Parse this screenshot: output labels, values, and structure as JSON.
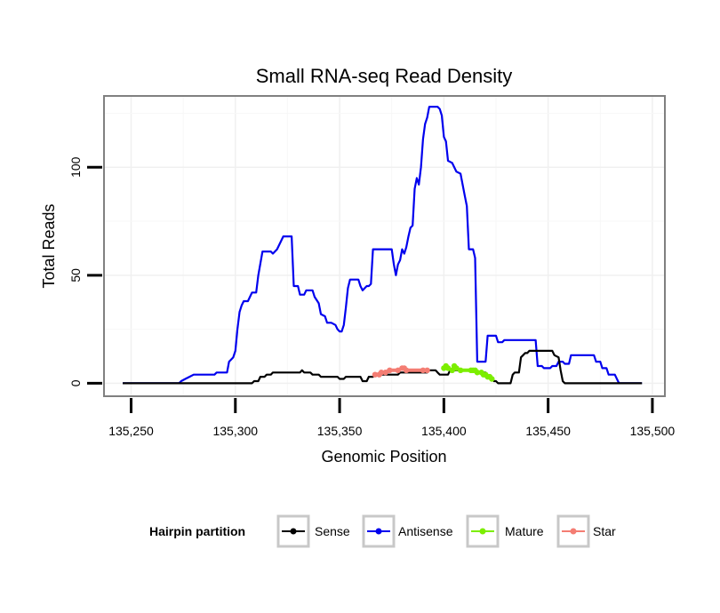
{
  "chart_data": {
    "type": "line",
    "title": "Small RNA-seq Read Density",
    "xlabel": "Genomic Position",
    "ylabel": "Total Reads",
    "xlim": [
      135237,
      135506
    ],
    "ylim": [
      -6,
      133
    ],
    "x_ticks": [
      135250,
      135300,
      135350,
      135400,
      135450,
      135500
    ],
    "x_tick_labels": [
      "135,250",
      "135,300",
      "135,350",
      "135,400",
      "135,450",
      "135,500"
    ],
    "y_ticks": [
      0,
      50,
      100
    ],
    "y_tick_labels": [
      "0",
      "50",
      "100"
    ],
    "grid": true,
    "legend": {
      "title": "Hairpin partition",
      "position": "bottom",
      "entries": [
        {
          "name": "Sense",
          "color": "#000000"
        },
        {
          "name": "Antisense",
          "color": "#0000ee"
        },
        {
          "name": "Mature",
          "color": "#7cee00"
        },
        {
          "name": "Star",
          "color": "#f47d73"
        }
      ]
    },
    "series": [
      {
        "name": "Antisense",
        "color": "#0000ee",
        "points": [
          [
            135246,
            0
          ],
          [
            135273,
            0
          ],
          [
            135274,
            1
          ],
          [
            135276,
            2
          ],
          [
            135278,
            3
          ],
          [
            135280,
            4
          ],
          [
            135290,
            4
          ],
          [
            135291,
            5
          ],
          [
            135296,
            5
          ],
          [
            135297,
            10
          ],
          [
            135299,
            12
          ],
          [
            135300,
            15
          ],
          [
            135301,
            25
          ],
          [
            135302,
            33
          ],
          [
            135303,
            36
          ],
          [
            135304,
            38
          ],
          [
            135306,
            38
          ],
          [
            135307,
            40
          ],
          [
            135308,
            42
          ],
          [
            135310,
            42
          ],
          [
            135311,
            50
          ],
          [
            135313,
            61
          ],
          [
            135317,
            61
          ],
          [
            135318,
            60
          ],
          [
            135320,
            62
          ],
          [
            135322,
            66
          ],
          [
            135323,
            68
          ],
          [
            135327,
            68
          ],
          [
            135328,
            45
          ],
          [
            135330,
            45
          ],
          [
            135331,
            41
          ],
          [
            135333,
            41
          ],
          [
            135334,
            43
          ],
          [
            135337,
            43
          ],
          [
            135338,
            40
          ],
          [
            135340,
            37
          ],
          [
            135341,
            32
          ],
          [
            135343,
            31
          ],
          [
            135344,
            28
          ],
          [
            135346,
            28
          ],
          [
            135348,
            27
          ],
          [
            135349,
            25
          ],
          [
            135350,
            24
          ],
          [
            135351,
            24
          ],
          [
            135352,
            27
          ],
          [
            135353,
            35
          ],
          [
            135354,
            44
          ],
          [
            135355,
            48
          ],
          [
            135359,
            48
          ],
          [
            135360,
            45
          ],
          [
            135361,
            43
          ],
          [
            135363,
            45
          ],
          [
            135364,
            45
          ],
          [
            135365,
            46
          ],
          [
            135366,
            62
          ],
          [
            135375,
            62
          ],
          [
            135376,
            55
          ],
          [
            135377,
            50
          ],
          [
            135378,
            55
          ],
          [
            135379,
            57
          ],
          [
            135380,
            62
          ],
          [
            135381,
            60
          ],
          [
            135382,
            63
          ],
          [
            135383,
            68
          ],
          [
            135384,
            72
          ],
          [
            135385,
            73
          ],
          [
            135386,
            90
          ],
          [
            135387,
            95
          ],
          [
            135388,
            92
          ],
          [
            135389,
            100
          ],
          [
            135390,
            113
          ],
          [
            135391,
            120
          ],
          [
            135392,
            123
          ],
          [
            135393,
            128
          ],
          [
            135397,
            128
          ],
          [
            135398,
            127
          ],
          [
            135399,
            124
          ],
          [
            135400,
            114
          ],
          [
            135401,
            112
          ],
          [
            135402,
            103
          ],
          [
            135404,
            102
          ],
          [
            135406,
            98
          ],
          [
            135408,
            97
          ],
          [
            135410,
            87
          ],
          [
            135411,
            82
          ],
          [
            135412,
            62
          ],
          [
            135414,
            62
          ],
          [
            135415,
            58
          ],
          [
            135416,
            10
          ],
          [
            135420,
            10
          ],
          [
            135421,
            22
          ],
          [
            135425,
            22
          ],
          [
            135426,
            19
          ],
          [
            135428,
            19
          ],
          [
            135429,
            20
          ],
          [
            135444,
            20
          ],
          [
            135445,
            8
          ],
          [
            135447,
            8
          ],
          [
            135448,
            7
          ],
          [
            135451,
            7
          ],
          [
            135452,
            8
          ],
          [
            135454,
            8
          ],
          [
            135455,
            10
          ],
          [
            135457,
            10
          ],
          [
            135458,
            9
          ],
          [
            135460,
            9
          ],
          [
            135461,
            13
          ],
          [
            135472,
            13
          ],
          [
            135473,
            10
          ],
          [
            135475,
            10
          ],
          [
            135476,
            7
          ],
          [
            135478,
            7
          ],
          [
            135479,
            4
          ],
          [
            135482,
            4
          ],
          [
            135483,
            2
          ],
          [
            135484,
            0
          ],
          [
            135495,
            0
          ]
        ]
      },
      {
        "name": "Sense",
        "color": "#000000",
        "points": [
          [
            135246,
            0
          ],
          [
            135308,
            0
          ],
          [
            135309,
            1
          ],
          [
            135311,
            1
          ],
          [
            135312,
            3
          ],
          [
            135314,
            3
          ],
          [
            135315,
            4
          ],
          [
            135317,
            4
          ],
          [
            135318,
            5
          ],
          [
            135331,
            5
          ],
          [
            135332,
            6
          ],
          [
            135333,
            5
          ],
          [
            135336,
            5
          ],
          [
            135337,
            4
          ],
          [
            135340,
            4
          ],
          [
            135341,
            3
          ],
          [
            135349,
            3
          ],
          [
            135350,
            2
          ],
          [
            135352,
            2
          ],
          [
            135353,
            3
          ],
          [
            135360,
            3
          ],
          [
            135361,
            1
          ],
          [
            135363,
            1
          ],
          [
            135364,
            3
          ],
          [
            135366,
            3
          ],
          [
            135367,
            4
          ],
          [
            135378,
            4
          ],
          [
            135379,
            5
          ],
          [
            135390,
            5
          ],
          [
            135392,
            5
          ],
          [
            135393,
            6
          ],
          [
            135396,
            6
          ],
          [
            135397,
            5
          ],
          [
            135398,
            4
          ],
          [
            135402,
            4
          ],
          [
            135403,
            6
          ],
          [
            135415,
            6
          ],
          [
            135416,
            5
          ],
          [
            135420,
            5
          ],
          [
            135421,
            3
          ],
          [
            135423,
            3
          ],
          [
            135424,
            1
          ],
          [
            135425,
            1
          ],
          [
            135426,
            0
          ],
          [
            135432,
            0
          ],
          [
            135433,
            4
          ],
          [
            135434,
            5
          ],
          [
            135436,
            5
          ],
          [
            135437,
            12
          ],
          [
            135438,
            13
          ],
          [
            135439,
            14
          ],
          [
            135440,
            14
          ],
          [
            135441,
            15
          ],
          [
            135452,
            15
          ],
          [
            135453,
            13
          ],
          [
            135455,
            12
          ],
          [
            135456,
            6
          ],
          [
            135457,
            1
          ],
          [
            135458,
            0
          ],
          [
            135470,
            0
          ],
          [
            135495,
            0
          ]
        ]
      },
      {
        "name": "Star",
        "color": "#f47d73",
        "points": [
          [
            135367,
            4
          ],
          [
            135369,
            4
          ],
          [
            135370,
            5
          ],
          [
            135372,
            5
          ],
          [
            135374,
            6
          ],
          [
            135378,
            6
          ],
          [
            135380,
            7
          ],
          [
            135381,
            7
          ],
          [
            135382,
            6
          ],
          [
            135390,
            6
          ],
          [
            135392,
            6
          ]
        ]
      },
      {
        "name": "Mature",
        "color": "#7cee00",
        "points": [
          [
            135400,
            7
          ],
          [
            135401,
            8
          ],
          [
            135402,
            7
          ],
          [
            135404,
            6
          ],
          [
            135405,
            8
          ],
          [
            135406,
            7
          ],
          [
            135408,
            6
          ],
          [
            135413,
            6
          ],
          [
            135414,
            6
          ],
          [
            135415,
            6
          ],
          [
            135416,
            5
          ],
          [
            135418,
            5
          ],
          [
            135419,
            4
          ],
          [
            135420,
            4
          ],
          [
            135421,
            3
          ],
          [
            135422,
            3
          ],
          [
            135423,
            2
          ]
        ]
      }
    ]
  }
}
